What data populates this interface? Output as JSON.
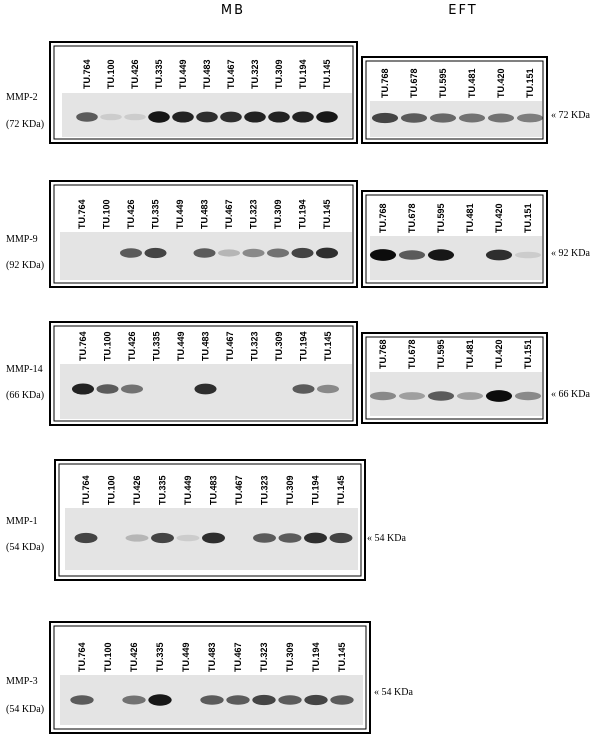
{
  "headers": [
    "MB",
    "EFT"
  ],
  "mb": [
    {
      "protein": "MMP-2",
      "weight": "(72 KDa)",
      "lanes": [
        "TU.764",
        "TU.100",
        "TU.426",
        "TU.335",
        "TU.449",
        "TU.483",
        "TU.467",
        "TU.323",
        "TU.309",
        "TU.194",
        "TU.145"
      ]
    },
    {
      "protein": "MMP-9",
      "weight": "(92 KDa)",
      "lanes": [
        "TU.764",
        "TU.100",
        "TU.426",
        "TU.335",
        "TU.449",
        "TU.483",
        "TU.467",
        "TU.323",
        "TU.309",
        "TU.194",
        "TU.145"
      ]
    },
    {
      "protein": "MMP-14",
      "weight": "(66 KDa)",
      "lanes": [
        "TU.764",
        "TU.100",
        "TU.426",
        "TU.335",
        "TU.449",
        "TU.483",
        "TU.467",
        "TU.323",
        "TU.309",
        "TU.194",
        "TU.145"
      ]
    },
    {
      "protein": "MMP-1",
      "weight": "(54 KDa)",
      "marker": "« 54 KDa",
      "lanes": [
        "TU.764",
        "TU.100",
        "TU.426",
        "TU.335",
        "TU.449",
        "TU.483",
        "TU.467",
        "TU.323",
        "TU.309",
        "TU.194",
        "TU.145"
      ]
    },
    {
      "protein": "MMP-3",
      "weight": "(54 KDa)",
      "marker": "« 54 KDa",
      "lanes": [
        "TU.764",
        "TU.100",
        "TU.426",
        "TU.335",
        "TU.449",
        "TU.483",
        "TU.467",
        "TU.323",
        "TU.309",
        "TU.194",
        "TU.145"
      ]
    }
  ],
  "eft": [
    {
      "marker": "« 72 KDa",
      "lanes": [
        "TU.768",
        "TU.678",
        "TU.595",
        "TU.481",
        "TU.420",
        "TU.151"
      ]
    },
    {
      "marker": "« 92 KDa",
      "lanes": [
        "TU.768",
        "TU.678",
        "TU.595",
        "TU.481",
        "TU.420",
        "TU.151"
      ]
    },
    {
      "marker": "« 66 KDa",
      "lanes": [
        "TU.768",
        "TU.678",
        "TU.595",
        "TU.481",
        "TU.420",
        "TU.151"
      ]
    }
  ]
}
